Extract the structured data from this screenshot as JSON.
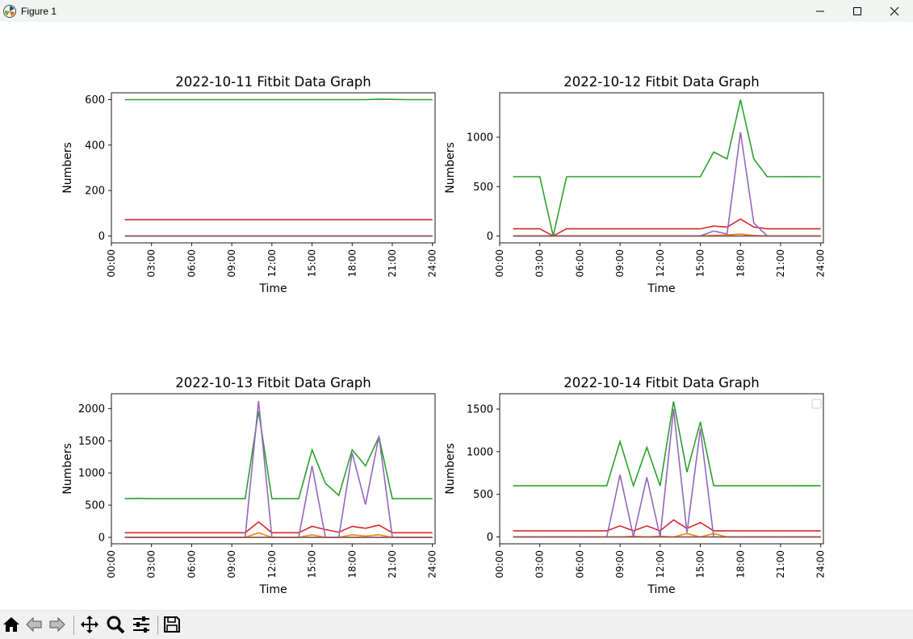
{
  "window": {
    "title": "Figure 1"
  },
  "toolbar": {
    "buttons": [
      "home-icon",
      "back-icon",
      "forward-icon",
      "pan-icon",
      "zoom-icon",
      "configure-subplots-icon",
      "save-icon"
    ]
  },
  "series_colors": [
    "#1f77b4",
    "#ff7f0e",
    "#2ca02c",
    "#d62728",
    "#9467bd",
    "#8c564b"
  ],
  "chart_data": [
    {
      "type": "line",
      "title": "2022-10-11 Fitbit Data Graph",
      "xlabel": "Time",
      "ylabel": "Numbers",
      "x_ticks": [
        "00:00",
        "03:00",
        "06:00",
        "09:00",
        "12:00",
        "15:00",
        "18:00",
        "21:00",
        "24:00"
      ],
      "xlim": [
        0,
        24.2
      ],
      "ylim": [
        -30,
        630
      ],
      "y_ticks": [
        "0",
        "200",
        "400",
        "600"
      ],
      "y_tick_values": [
        0,
        200,
        400,
        600
      ],
      "x": [
        1,
        2,
        3,
        4,
        5,
        6,
        7,
        8,
        9,
        10,
        11,
        12,
        13,
        14,
        15,
        16,
        17,
        18,
        19,
        20,
        21,
        22,
        23,
        24
      ],
      "series": [
        {
          "values": [
            0,
            0,
            0,
            0,
            0,
            0,
            0,
            0,
            0,
            0,
            0,
            0,
            0,
            0,
            0,
            0,
            0,
            0,
            0,
            0,
            0,
            0,
            0,
            0
          ]
        },
        {
          "values": [
            0,
            0,
            0,
            0,
            0,
            0,
            0,
            0,
            0,
            0,
            0,
            0,
            0,
            0,
            0,
            0,
            0,
            0,
            0,
            0,
            0,
            0,
            0,
            0
          ]
        },
        {
          "values": [
            600,
            600,
            600,
            600,
            600,
            600,
            600,
            600,
            600,
            600,
            600,
            600,
            600,
            600,
            600,
            600,
            600,
            600,
            600,
            602,
            601,
            600,
            600,
            600
          ]
        },
        {
          "values": [
            72,
            72,
            72,
            72,
            72,
            72,
            72,
            72,
            72,
            72,
            72,
            72,
            72,
            72,
            72,
            72,
            72,
            72,
            72,
            72,
            72,
            72,
            72,
            72
          ]
        },
        {
          "values": [
            0,
            0,
            0,
            0,
            0,
            0,
            0,
            0,
            0,
            0,
            0,
            0,
            0,
            0,
            0,
            0,
            0,
            0,
            0,
            0,
            0,
            0,
            0,
            0
          ]
        },
        {
          "values": [
            0,
            0,
            0,
            0,
            0,
            0,
            0,
            0,
            0,
            0,
            0,
            0,
            0,
            0,
            0,
            0,
            0,
            0,
            0,
            0,
            0,
            0,
            0,
            0
          ]
        }
      ],
      "grid": false,
      "legend": false
    },
    {
      "type": "line",
      "title": "2022-10-12 Fitbit Data Graph",
      "xlabel": "Time",
      "ylabel": "Numbers",
      "x_ticks": [
        "00:00",
        "03:00",
        "06:00",
        "09:00",
        "12:00",
        "15:00",
        "18:00",
        "21:00",
        "24:00"
      ],
      "xlim": [
        0,
        24.2
      ],
      "ylim": [
        -70,
        1450
      ],
      "y_ticks": [
        "0",
        "500",
        "1000"
      ],
      "y_tick_values": [
        0,
        500,
        1000
      ],
      "x": [
        1,
        2,
        3,
        4,
        5,
        6,
        7,
        8,
        9,
        10,
        11,
        12,
        13,
        14,
        15,
        16,
        17,
        18,
        19,
        20,
        21,
        22,
        23,
        24
      ],
      "series": [
        {
          "values": [
            0,
            0,
            0,
            0,
            0,
            0,
            0,
            0,
            0,
            0,
            0,
            0,
            0,
            0,
            0,
            0,
            0,
            0,
            0,
            0,
            0,
            0,
            0,
            0
          ]
        },
        {
          "values": [
            0,
            0,
            0,
            0,
            0,
            0,
            0,
            0,
            0,
            0,
            0,
            0,
            0,
            0,
            0,
            5,
            10,
            20,
            5,
            0,
            0,
            0,
            0,
            0
          ]
        },
        {
          "values": [
            600,
            600,
            600,
            0,
            600,
            600,
            600,
            600,
            600,
            600,
            600,
            600,
            600,
            600,
            600,
            850,
            780,
            1380,
            780,
            600,
            600,
            601,
            600,
            600
          ]
        },
        {
          "values": [
            72,
            72,
            72,
            0,
            72,
            72,
            72,
            72,
            72,
            72,
            72,
            72,
            72,
            72,
            72,
            100,
            90,
            170,
            90,
            72,
            72,
            72,
            72,
            72
          ]
        },
        {
          "values": [
            0,
            0,
            0,
            0,
            0,
            0,
            0,
            0,
            0,
            0,
            0,
            0,
            0,
            0,
            0,
            50,
            20,
            1050,
            130,
            0,
            0,
            0,
            0,
            0
          ]
        },
        {
          "values": [
            0,
            0,
            0,
            0,
            0,
            0,
            0,
            0,
            0,
            0,
            0,
            0,
            0,
            0,
            0,
            0,
            0,
            0,
            0,
            0,
            0,
            0,
            0,
            0
          ]
        }
      ],
      "grid": false,
      "legend": false
    },
    {
      "type": "line",
      "title": "2022-10-13 Fitbit Data Graph",
      "xlabel": "Time",
      "ylabel": "Numbers",
      "x_ticks": [
        "00:00",
        "03:00",
        "06:00",
        "09:00",
        "12:00",
        "15:00",
        "18:00",
        "21:00",
        "24:00"
      ],
      "xlim": [
        0,
        24.2
      ],
      "ylim": [
        -100,
        2230
      ],
      "y_ticks": [
        "0",
        "500",
        "1000",
        "1500",
        "2000"
      ],
      "y_tick_values": [
        0,
        500,
        1000,
        1500,
        2000
      ],
      "x": [
        1,
        2,
        3,
        4,
        5,
        6,
        7,
        8,
        9,
        10,
        11,
        12,
        13,
        14,
        15,
        16,
        17,
        18,
        19,
        20,
        21,
        22,
        23,
        24
      ],
      "series": [
        {
          "values": [
            0,
            0,
            0,
            0,
            0,
            0,
            0,
            0,
            0,
            0,
            0,
            0,
            0,
            0,
            0,
            0,
            0,
            0,
            0,
            0,
            0,
            0,
            0,
            0
          ]
        },
        {
          "values": [
            0,
            0,
            0,
            0,
            0,
            0,
            0,
            0,
            0,
            0,
            70,
            0,
            0,
            0,
            40,
            0,
            0,
            40,
            20,
            40,
            0,
            0,
            0,
            0
          ]
        },
        {
          "values": [
            600,
            605,
            600,
            600,
            600,
            600,
            600,
            600,
            600,
            600,
            1960,
            600,
            600,
            600,
            1360,
            840,
            650,
            1360,
            1110,
            1560,
            600,
            600,
            600,
            600
          ]
        },
        {
          "values": [
            72,
            72,
            72,
            72,
            72,
            72,
            72,
            72,
            72,
            72,
            240,
            72,
            72,
            72,
            170,
            120,
            80,
            170,
            140,
            190,
            72,
            72,
            72,
            72
          ]
        },
        {
          "values": [
            0,
            0,
            0,
            0,
            0,
            0,
            0,
            0,
            0,
            0,
            2120,
            0,
            0,
            0,
            1110,
            0,
            0,
            1310,
            510,
            1570,
            0,
            0,
            0,
            0
          ]
        },
        {
          "values": [
            0,
            0,
            0,
            0,
            0,
            0,
            0,
            0,
            0,
            0,
            0,
            0,
            0,
            0,
            0,
            0,
            0,
            0,
            0,
            0,
            0,
            0,
            0,
            0
          ]
        }
      ],
      "grid": false,
      "legend": false
    },
    {
      "type": "line",
      "title": "2022-10-14 Fitbit Data Graph",
      "xlabel": "Time",
      "ylabel": "Numbers",
      "x_ticks": [
        "00:00",
        "03:00",
        "06:00",
        "09:00",
        "12:00",
        "15:00",
        "18:00",
        "21:00",
        "24:00"
      ],
      "xlim": [
        0,
        24.2
      ],
      "ylim": [
        -80,
        1680
      ],
      "y_ticks": [
        "0",
        "500",
        "1000",
        "1500"
      ],
      "y_tick_values": [
        0,
        500,
        1000,
        1500
      ],
      "x": [
        1,
        2,
        3,
        4,
        5,
        6,
        7,
        8,
        9,
        10,
        11,
        12,
        13,
        14,
        15,
        16,
        17,
        18,
        19,
        20,
        21,
        22,
        23,
        24
      ],
      "series": [
        {
          "values": [
            0,
            0,
            0,
            0,
            0,
            0,
            0,
            0,
            0,
            0,
            0,
            0,
            0,
            0,
            0,
            0,
            0,
            0,
            0,
            0,
            0,
            0,
            0,
            0
          ]
        },
        {
          "values": [
            0,
            0,
            0,
            0,
            0,
            0,
            0,
            0,
            0,
            10,
            0,
            10,
            0,
            40,
            0,
            40,
            0,
            0,
            0,
            0,
            0,
            0,
            0,
            0
          ]
        },
        {
          "values": [
            600,
            600,
            600,
            600,
            600,
            600,
            600,
            600,
            1120,
            600,
            1050,
            600,
            1590,
            760,
            1350,
            600,
            600,
            600,
            600,
            600,
            600,
            600,
            602,
            600
          ]
        },
        {
          "values": [
            72,
            72,
            72,
            72,
            72,
            72,
            72,
            72,
            130,
            72,
            130,
            72,
            200,
            100,
            170,
            72,
            72,
            72,
            72,
            72,
            72,
            72,
            72,
            72
          ]
        },
        {
          "values": [
            0,
            0,
            0,
            0,
            0,
            0,
            0,
            0,
            730,
            0,
            700,
            0,
            1500,
            50,
            1270,
            0,
            0,
            0,
            0,
            0,
            0,
            0,
            0,
            0
          ]
        },
        {
          "values": [
            0,
            0,
            0,
            0,
            0,
            0,
            0,
            0,
            0,
            0,
            0,
            0,
            0,
            0,
            0,
            0,
            0,
            0,
            0,
            0,
            0,
            0,
            0,
            0
          ]
        }
      ],
      "grid": false,
      "legend": true,
      "legend_position": "top-right"
    }
  ]
}
